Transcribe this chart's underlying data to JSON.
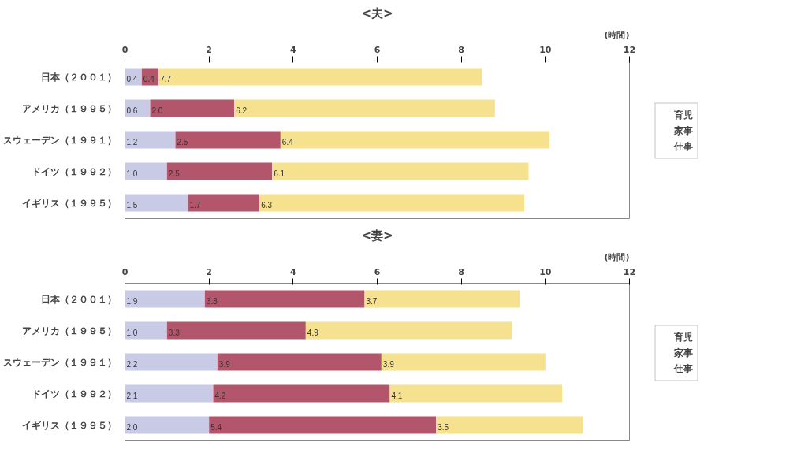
{
  "chart_data": [
    {
      "type": "bar",
      "orientation": "horizontal",
      "stacked": true,
      "title": "<夫>",
      "xlabel": "(時間)",
      "categories": [
        "日本（２００１）",
        "アメリカ（１９９５）",
        "スウェーデン（１９９１）",
        "ドイツ（１９９２）",
        "イギリス（１９９５）"
      ],
      "series": [
        {
          "name": "育児",
          "color": "#c9cbe6",
          "values": [
            0.4,
            0.6,
            1.2,
            1.0,
            1.5
          ],
          "value_labels": [
            "0.4",
            "0.6",
            "1.2",
            "1.0",
            "1.5"
          ]
        },
        {
          "name": "家事",
          "color": "#b4566b",
          "values": [
            0.4,
            2.0,
            2.5,
            2.5,
            1.7
          ],
          "value_labels": [
            "0.4",
            "2.0",
            "2.5",
            "2.5",
            "1.7"
          ]
        },
        {
          "name": "仕事",
          "color": "#f6e28e",
          "values": [
            7.7,
            6.2,
            6.4,
            6.1,
            6.3
          ],
          "value_labels": [
            "7.7",
            "6.2",
            "6.4",
            "6.1",
            "6.3"
          ]
        }
      ],
      "xlim": [
        0,
        12
      ],
      "xticks": [
        0,
        2,
        4,
        6,
        8,
        10,
        12
      ],
      "grid": false,
      "legend": "right"
    },
    {
      "type": "bar",
      "orientation": "horizontal",
      "stacked": true,
      "title": "<妻>",
      "xlabel": "(時間)",
      "categories": [
        "日本（２００１）",
        "アメリカ（１９９５）",
        "スウェーデン（１９９１）",
        "ドイツ（１９９２）",
        "イギリス（１９９５）"
      ],
      "series": [
        {
          "name": "育児",
          "color": "#c9cbe6",
          "values": [
            1.9,
            1.0,
            2.2,
            2.1,
            2.0
          ],
          "value_labels": [
            "1.9",
            "1.0",
            "2.2",
            "2.1",
            "2.0"
          ]
        },
        {
          "name": "家事",
          "color": "#b4566b",
          "values": [
            3.8,
            3.3,
            3.9,
            4.2,
            5.4
          ],
          "value_labels": [
            "3.8",
            "3.3",
            "3.9",
            "4.2",
            "5.4"
          ]
        },
        {
          "name": "仕事",
          "color": "#f6e28e",
          "values": [
            3.7,
            4.9,
            3.9,
            4.1,
            3.5
          ],
          "value_labels": [
            "3.7",
            "4.9",
            "3.9",
            "4.1",
            "3.5"
          ]
        }
      ],
      "xlim": [
        0,
        12
      ],
      "xticks": [
        0,
        2,
        4,
        6,
        8,
        10,
        12
      ],
      "grid": false,
      "legend": "right"
    }
  ]
}
